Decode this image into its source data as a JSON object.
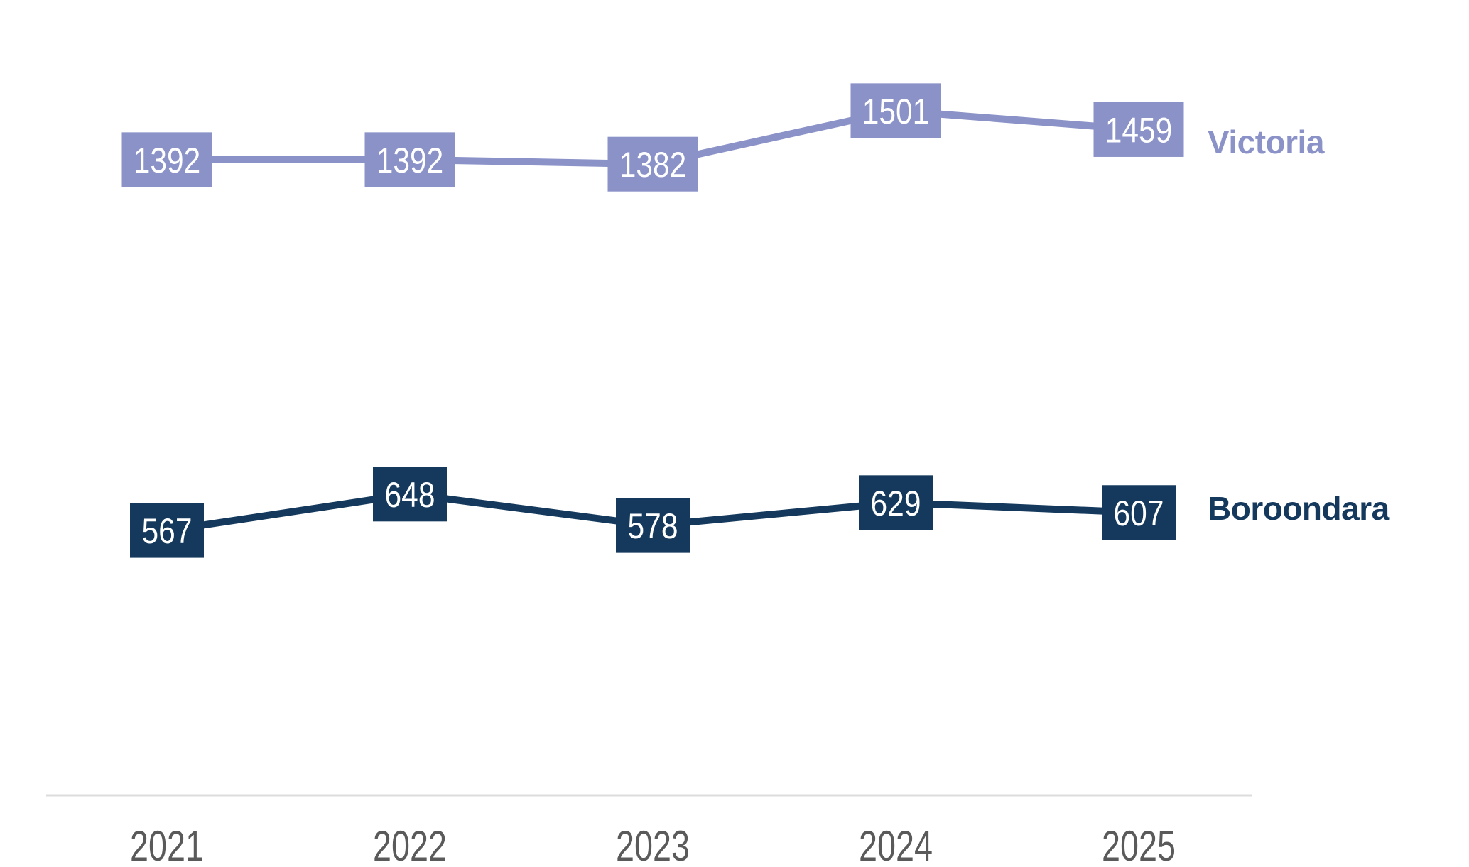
{
  "chart_data": {
    "type": "line",
    "title": "",
    "xlabel": "",
    "ylabel": "",
    "categories": [
      "2021",
      "2022",
      "2023",
      "2024",
      "2025"
    ],
    "series": [
      {
        "name": "Victoria",
        "color": "#8A92C8",
        "values": [
          1392,
          1392,
          1382,
          1501,
          1459
        ],
        "value_labels": [
          "1392",
          "1392",
          "1382",
          "1501",
          "1459"
        ]
      },
      {
        "name": "Boroondara",
        "color": "#14395C",
        "values": [
          567,
          648,
          578,
          629,
          607
        ],
        "value_labels": [
          "567",
          "648",
          "578",
          "629",
          "607"
        ]
      }
    ],
    "ylim": [
      0,
      1750
    ],
    "grid": false,
    "value_label_style": "solid box at each data point with white text",
    "value_label_text_color": "#FFFFFF",
    "legend_position": "right of last point, colored like series",
    "x_axis_line_color": "#DCDCDC",
    "tick_label_color": "#5A5A5A",
    "background_color": "#FFFFFF"
  }
}
